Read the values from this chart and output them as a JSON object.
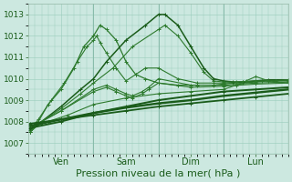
{
  "bg_color": "#cce8e0",
  "grid_color": "#99ccbb",
  "line_color_dark": "#1a5c1a",
  "line_color_mid": "#2d7a2d",
  "ylim": [
    1006.5,
    1013.5
  ],
  "yticks": [
    1007,
    1008,
    1009,
    1010,
    1011,
    1012,
    1013
  ],
  "xlabel": "Pression niveau de la mer( hPa )",
  "xlabel_fontsize": 8,
  "ytick_fontsize": 6.5,
  "xtick_fontsize": 7,
  "xlim": [
    0.0,
    4.0
  ],
  "day_labels": [
    "Ven",
    "Sam",
    "Dim",
    "Lun"
  ],
  "day_positions": [
    0.5,
    1.5,
    2.5,
    3.5
  ],
  "vline_positions": [
    1.0,
    2.0,
    3.0
  ],
  "lines": [
    {
      "x": [
        0.02,
        0.15,
        0.3,
        0.5,
        0.7,
        0.85,
        1.0,
        1.1,
        1.2,
        1.35,
        1.5,
        1.65,
        1.8,
        2.0,
        2.3,
        2.6,
        2.85,
        3.0,
        3.15,
        3.3,
        3.5,
        3.7,
        4.0
      ],
      "y": [
        1007.5,
        1008.0,
        1008.8,
        1009.5,
        1010.5,
        1011.5,
        1012.0,
        1012.5,
        1012.3,
        1011.8,
        1010.8,
        1010.2,
        1010.0,
        1009.8,
        1009.7,
        1009.7,
        1009.7,
        1009.75,
        1009.8,
        1009.8,
        1009.85,
        1009.9,
        1009.9
      ],
      "color": "#2d7a2d",
      "lw": 0.9
    },
    {
      "x": [
        0.02,
        0.15,
        0.35,
        0.55,
        0.75,
        0.9,
        1.0,
        1.05,
        1.1,
        1.2,
        1.35,
        1.5,
        1.65,
        1.8,
        2.0,
        2.3,
        2.6,
        2.85,
        3.0,
        3.3,
        3.6,
        4.0
      ],
      "y": [
        1007.6,
        1008.1,
        1009.0,
        1009.8,
        1010.8,
        1011.5,
        1011.8,
        1012.0,
        1011.7,
        1011.2,
        1010.5,
        1009.9,
        1010.2,
        1010.5,
        1010.5,
        1010.0,
        1009.8,
        1009.8,
        1009.8,
        1009.85,
        1009.9,
        1009.95
      ],
      "color": "#2d7a2d",
      "lw": 0.8
    },
    {
      "x": [
        0.02,
        0.2,
        0.5,
        0.8,
        1.0,
        1.2,
        1.5,
        1.8,
        2.0,
        2.1,
        2.3,
        2.5,
        2.7,
        2.85,
        3.0,
        3.15,
        3.3,
        3.5,
        3.7,
        4.0
      ],
      "y": [
        1007.6,
        1008.0,
        1008.7,
        1009.5,
        1010.0,
        1010.8,
        1011.8,
        1012.5,
        1013.0,
        1013.0,
        1012.5,
        1011.5,
        1010.5,
        1010.0,
        1009.9,
        1009.85,
        1009.85,
        1009.9,
        1009.95,
        1009.95
      ],
      "color": "#1a5c1a",
      "lw": 1.1
    },
    {
      "x": [
        0.02,
        0.2,
        0.5,
        0.8,
        1.0,
        1.3,
        1.6,
        2.0,
        2.1,
        2.3,
        2.5,
        2.7,
        2.85,
        3.0,
        3.2,
        3.5,
        3.8,
        4.0
      ],
      "y": [
        1007.6,
        1008.0,
        1008.6,
        1009.3,
        1009.8,
        1010.5,
        1011.5,
        1012.3,
        1012.5,
        1012.0,
        1011.2,
        1010.3,
        1009.9,
        1009.85,
        1009.85,
        1009.9,
        1009.9,
        1009.95
      ],
      "color": "#2d7a2d",
      "lw": 0.8
    },
    {
      "x": [
        0.02,
        0.2,
        0.5,
        1.0,
        1.2,
        1.35,
        1.5,
        1.6,
        1.75,
        1.85,
        2.0,
        2.5,
        3.0,
        3.5,
        4.0
      ],
      "y": [
        1007.5,
        1008.0,
        1008.5,
        1009.5,
        1009.7,
        1009.5,
        1009.3,
        1009.2,
        1009.4,
        1009.6,
        1010.0,
        1009.7,
        1009.7,
        1009.8,
        1009.85
      ],
      "color": "#2d7a2d",
      "lw": 0.8
    },
    {
      "x": [
        0.02,
        0.2,
        0.5,
        1.0,
        1.2,
        1.35,
        1.5,
        1.6,
        1.75,
        1.85,
        2.0,
        2.5,
        3.0,
        3.5,
        4.0
      ],
      "y": [
        1007.5,
        1008.0,
        1008.5,
        1009.4,
        1009.6,
        1009.4,
        1009.2,
        1009.1,
        1009.3,
        1009.5,
        1009.8,
        1009.6,
        1009.65,
        1009.75,
        1009.8
      ],
      "color": "#2d7a2d",
      "lw": 0.8
    },
    {
      "x": [
        0.02,
        0.3,
        0.6,
        1.0,
        1.5,
        2.0,
        2.5,
        3.0,
        3.2,
        3.35,
        3.5,
        3.7,
        4.0
      ],
      "y": [
        1007.7,
        1008.0,
        1008.3,
        1008.8,
        1009.1,
        1009.3,
        1009.4,
        1009.5,
        1009.7,
        1009.9,
        1010.1,
        1009.9,
        1009.8
      ],
      "color": "#2d7a2d",
      "lw": 0.8
    },
    {
      "x": [
        0.02,
        0.5,
        1.0,
        1.5,
        2.0,
        2.5,
        3.0,
        3.5,
        4.0
      ],
      "y": [
        1007.7,
        1008.0,
        1008.4,
        1008.7,
        1009.0,
        1009.2,
        1009.4,
        1009.5,
        1009.6
      ],
      "color": "#1a5c1a",
      "lw": 1.4
    },
    {
      "x": [
        0.02,
        0.5,
        1.0,
        1.5,
        2.0,
        2.5,
        3.0,
        3.5,
        4.0
      ],
      "y": [
        1007.8,
        1008.1,
        1008.4,
        1008.65,
        1008.85,
        1009.0,
        1009.2,
        1009.35,
        1009.5
      ],
      "color": "#1a5c1a",
      "lw": 1.7
    },
    {
      "x": [
        0.02,
        0.5,
        1.0,
        1.5,
        2.0,
        2.5,
        3.0,
        3.5,
        4.0
      ],
      "y": [
        1007.9,
        1008.1,
        1008.3,
        1008.5,
        1008.7,
        1008.85,
        1009.0,
        1009.15,
        1009.3
      ],
      "color": "#1a5c1a",
      "lw": 1.3
    }
  ]
}
